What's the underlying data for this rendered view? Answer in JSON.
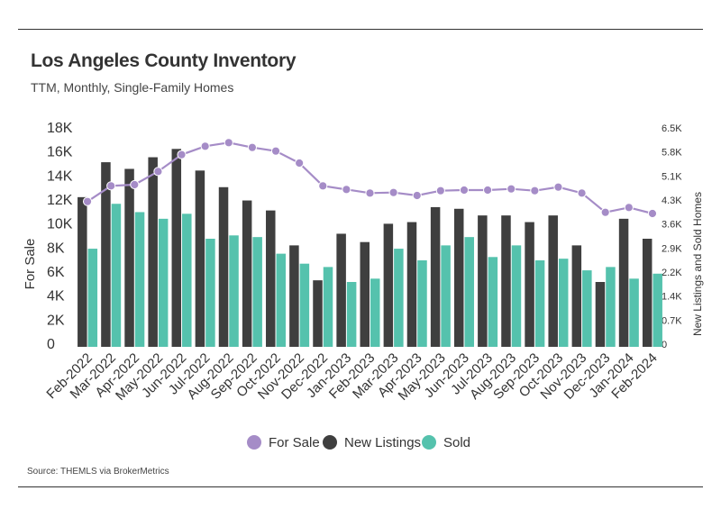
{
  "title": "Los Angeles County Inventory",
  "subtitle": "TTM, Monthly, Single-Family Homes",
  "source": "Source:  THEMLS via BrokerMetrics",
  "colors": {
    "for_sale": "#a58cc7",
    "new_listings": "#3f3f3f",
    "sold": "#55c2ad",
    "rule": "#333333"
  },
  "chart_data": {
    "type": "bar",
    "categories": [
      "Feb-2022",
      "Mar-2022",
      "Apr-2022",
      "May-2022",
      "Jun-2022",
      "Jul-2022",
      "Aug-2022",
      "Sep-2022",
      "Oct-2022",
      "Nov-2022",
      "Dec-2022",
      "Jan-2023",
      "Feb-2023",
      "Mar-2023",
      "Apr-2023",
      "May-2023",
      "Jun-2023",
      "Jul-2023",
      "Aug-2023",
      "Sep-2023",
      "Oct-2023",
      "Nov-2023",
      "Dec-2023",
      "Jan-2024",
      "Feb-2024"
    ],
    "ylabel": "For Sale",
    "y2label": "New Listings and Sold Homes",
    "ylim": [
      0,
      18000
    ],
    "y2lim": [
      0,
      6500
    ],
    "yticks": [
      "0",
      "2K",
      "4K",
      "6K",
      "8K",
      "10K",
      "12K",
      "14K",
      "16K",
      "18K"
    ],
    "y2ticks": [
      "0",
      "0.7K",
      "1.4K",
      "2.2K",
      "2.9K",
      "3.6K",
      "4.3K",
      "5.1K",
      "5.8K",
      "6.5K"
    ],
    "legend_position": "bottom-center",
    "grid": false,
    "series": [
      {
        "name": "For Sale",
        "kind": "line",
        "axis": "left",
        "values": [
          12100,
          13400,
          13500,
          14600,
          16000,
          16700,
          17000,
          16600,
          16300,
          15300,
          13400,
          13100,
          12800,
          12850,
          12600,
          13000,
          13050,
          13050,
          13150,
          13000,
          13300,
          12800,
          11200,
          11600,
          11100
        ]
      },
      {
        "name": "New Listings",
        "kind": "bar",
        "axis": "right",
        "values": [
          4500,
          5550,
          5350,
          5700,
          5950,
          5300,
          4800,
          4400,
          4100,
          3050,
          2000,
          3400,
          3150,
          3700,
          3750,
          4200,
          4150,
          3950,
          3950,
          3750,
          3950,
          3050,
          1950,
          3850,
          3250
        ]
      },
      {
        "name": "Sold",
        "kind": "bar",
        "axis": "right",
        "values": [
          2950,
          4300,
          4050,
          3850,
          4000,
          3250,
          3350,
          3300,
          2800,
          2500,
          2400,
          1950,
          2050,
          2950,
          2600,
          3050,
          3300,
          2700,
          3050,
          2600,
          2650,
          2300,
          2400,
          2050,
          2200
        ]
      }
    ]
  }
}
